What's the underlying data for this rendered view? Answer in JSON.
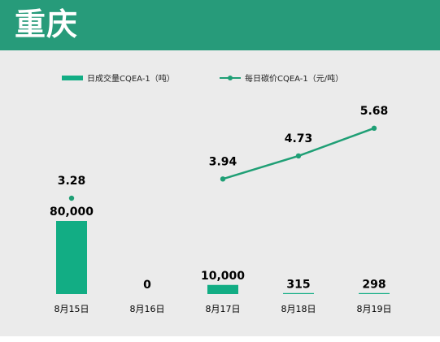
{
  "header": {
    "title": "重庆"
  },
  "colors": {
    "header_bg": "#279b7a",
    "bar": "#12ad84",
    "line": "#1f9f75",
    "background": "#ebebeb"
  },
  "chart_data": {
    "type": "bar",
    "categories": [
      "8月15日",
      "8月16日",
      "8月17日",
      "8月18日",
      "8月19日"
    ],
    "series": [
      {
        "name": "日成交量CQEA-1（吨）",
        "type": "bar",
        "values": [
          80000,
          0,
          10000,
          315,
          298
        ],
        "labels": [
          "80,000",
          "0",
          "10,000",
          "315",
          "298"
        ]
      },
      {
        "name": "每日碳价CQEA-1（元/吨）",
        "type": "line",
        "values": [
          3.28,
          null,
          3.94,
          4.73,
          5.68
        ],
        "labels": [
          "3.28",
          "",
          "3.94",
          "4.73",
          "5.68"
        ]
      }
    ],
    "legend": "top",
    "grid": false
  }
}
